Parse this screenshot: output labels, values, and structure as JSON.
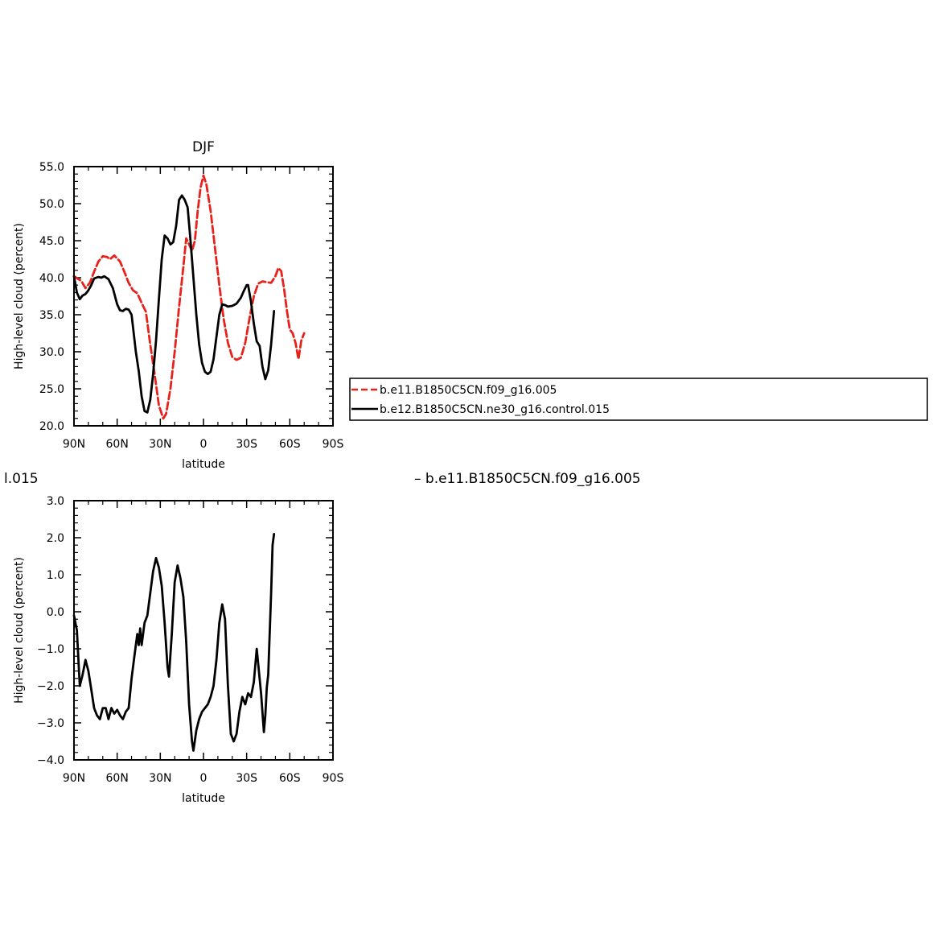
{
  "chart_data": [
    {
      "type": "line",
      "title": "DJF",
      "xlabel": "latitude",
      "ylabel": "High-level cloud (percent)",
      "xlim": [
        90,
        -90
      ],
      "ylim": [
        20,
        55
      ],
      "x_ticks": [
        {
          "value": 90,
          "label": "90N"
        },
        {
          "value": 60,
          "label": "60N"
        },
        {
          "value": 30,
          "label": "30N"
        },
        {
          "value": 0,
          "label": "0"
        },
        {
          "value": -30,
          "label": "30S"
        },
        {
          "value": -60,
          "label": "60S"
        },
        {
          "value": -90,
          "label": "90S"
        }
      ],
      "y_ticks": [
        {
          "value": 20,
          "label": "20.0"
        },
        {
          "value": 25,
          "label": "25.0"
        },
        {
          "value": 30,
          "label": "30.0"
        },
        {
          "value": 35,
          "label": "35.0"
        },
        {
          "value": 40,
          "label": "40.0"
        },
        {
          "value": 45,
          "label": "45.0"
        },
        {
          "value": 50,
          "label": "50.0"
        },
        {
          "value": 55,
          "label": "55.0"
        }
      ],
      "legend": "right",
      "series": [
        {
          "name": "b.e11.B1850C5CN.f09_g16.005",
          "color": "#e8211b",
          "dash": "dashed",
          "points": [
            [
              90,
              40.2
            ],
            [
              87,
              39.8
            ],
            [
              85,
              39.6
            ],
            [
              82,
              38.6
            ],
            [
              79,
              39.3
            ],
            [
              76,
              40.8
            ],
            [
              73,
              42.2
            ],
            [
              70,
              42.9
            ],
            [
              67,
              42.8
            ],
            [
              65,
              42.5
            ],
            [
              62,
              43.0
            ],
            [
              58,
              42.2
            ],
            [
              55,
              40.8
            ],
            [
              52,
              39.3
            ],
            [
              49,
              38.3
            ],
            [
              46,
              37.9
            ],
            [
              43,
              36.6
            ],
            [
              40,
              35.4
            ],
            [
              37,
              31.0
            ],
            [
              34,
              27.0
            ],
            [
              31,
              22.8
            ],
            [
              28,
              21.0
            ],
            [
              26,
              21.6
            ],
            [
              23,
              25.0
            ],
            [
              20,
              30.0
            ],
            [
              17,
              36.0
            ],
            [
              14,
              41.5
            ],
            [
              12,
              45.3
            ],
            [
              10,
              44.5
            ],
            [
              8,
              43.6
            ],
            [
              6,
              45.0
            ],
            [
              4,
              49.0
            ],
            [
              2,
              52.2
            ],
            [
              0,
              53.8
            ],
            [
              -2,
              52.6
            ],
            [
              -5,
              49.0
            ],
            [
              -8,
              44.0
            ],
            [
              -11,
              39.0
            ],
            [
              -14,
              34.5
            ],
            [
              -17,
              31.2
            ],
            [
              -20,
              29.3
            ],
            [
              -23,
              28.9
            ],
            [
              -26,
              29.2
            ],
            [
              -29,
              31.2
            ],
            [
              -32,
              34.5
            ],
            [
              -35,
              37.5
            ],
            [
              -38,
              39.2
            ],
            [
              -41,
              39.5
            ],
            [
              -44,
              39.4
            ],
            [
              -47,
              39.3
            ],
            [
              -50,
              40.2
            ],
            [
              -52,
              41.3
            ],
            [
              -54,
              40.9
            ],
            [
              -56,
              38.5
            ],
            [
              -58,
              35.5
            ],
            [
              -60,
              33.0
            ],
            [
              -62,
              32.5
            ],
            [
              -64,
              31.2
            ],
            [
              -66,
              29.0
            ],
            [
              -68,
              31.5
            ],
            [
              -70,
              32.5
            ]
          ]
        },
        {
          "name": "b.e12.B1850C5CN.ne30_g16.control.015",
          "color": "#000000",
          "dash": "solid",
          "points": [
            [
              90,
              40.2
            ],
            [
              88,
              38.0
            ],
            [
              86,
              37.1
            ],
            [
              84,
              37.6
            ],
            [
              82,
              37.8
            ],
            [
              80,
              38.3
            ],
            [
              78,
              39.0
            ],
            [
              76,
              39.9
            ],
            [
              73,
              40.1
            ],
            [
              71,
              40.0
            ],
            [
              69,
              40.2
            ],
            [
              66,
              39.8
            ],
            [
              63,
              38.6
            ],
            [
              60,
              36.4
            ],
            [
              58,
              35.6
            ],
            [
              56,
              35.5
            ],
            [
              54,
              35.8
            ],
            [
              52,
              35.7
            ],
            [
              50,
              35.0
            ],
            [
              47,
              30.0
            ],
            [
              45,
              27.4
            ],
            [
              43,
              24.0
            ],
            [
              41,
              22.0
            ],
            [
              39,
              21.8
            ],
            [
              37,
              23.5
            ],
            [
              35,
              27.0
            ],
            [
              33,
              31.5
            ],
            [
              31,
              37.0
            ],
            [
              29,
              42.5
            ],
            [
              27,
              45.7
            ],
            [
              25,
              45.3
            ],
            [
              23,
              44.5
            ],
            [
              21,
              44.8
            ],
            [
              19,
              47.0
            ],
            [
              17,
              50.5
            ],
            [
              15,
              51.1
            ],
            [
              13,
              50.5
            ],
            [
              11,
              49.5
            ],
            [
              9,
              45.0
            ],
            [
              7,
              40.0
            ],
            [
              5,
              35.0
            ],
            [
              3,
              31.0
            ],
            [
              1,
              28.5
            ],
            [
              -1,
              27.3
            ],
            [
              -3,
              27.0
            ],
            [
              -5,
              27.3
            ],
            [
              -7,
              29.0
            ],
            [
              -9,
              32.0
            ],
            [
              -11,
              35.0
            ],
            [
              -13,
              36.4
            ],
            [
              -15,
              36.3
            ],
            [
              -17,
              36.1
            ],
            [
              -20,
              36.2
            ],
            [
              -23,
              36.5
            ],
            [
              -26,
              37.3
            ],
            [
              -28,
              38.2
            ],
            [
              -30,
              39.0
            ],
            [
              -31,
              39.0
            ],
            [
              -33,
              36.8
            ],
            [
              -35,
              33.8
            ],
            [
              -37,
              31.4
            ],
            [
              -39,
              30.8
            ],
            [
              -41,
              28.0
            ],
            [
              -43,
              26.3
            ],
            [
              -45,
              27.5
            ],
            [
              -47,
              31.0
            ],
            [
              -49,
              35.5
            ]
          ]
        }
      ]
    },
    {
      "type": "line",
      "title": "",
      "xlabel": "latitude",
      "ylabel": "High-level cloud (percent)",
      "xlim": [
        90,
        -90
      ],
      "ylim": [
        -4,
        3
      ],
      "x_ticks": [
        {
          "value": 90,
          "label": "90N"
        },
        {
          "value": 60,
          "label": "60N"
        },
        {
          "value": 30,
          "label": "30N"
        },
        {
          "value": 0,
          "label": "0"
        },
        {
          "value": -30,
          "label": "30S"
        },
        {
          "value": -60,
          "label": "60S"
        },
        {
          "value": -90,
          "label": "90S"
        }
      ],
      "y_ticks": [
        {
          "value": -4,
          "label": "−4.0"
        },
        {
          "value": -3,
          "label": "−3.0"
        },
        {
          "value": -2,
          "label": "−2.0"
        },
        {
          "value": -1,
          "label": "−1.0"
        },
        {
          "value": 0,
          "label": "0.0"
        },
        {
          "value": 1,
          "label": "1.0"
        },
        {
          "value": 2,
          "label": "2.0"
        },
        {
          "value": 3,
          "label": "3.0"
        }
      ],
      "series": [
        {
          "name": "",
          "color": "#000000",
          "dash": "solid",
          "points": [
            [
              90,
              -0.1
            ],
            [
              88,
              -0.5
            ],
            [
              86,
              -2.0
            ],
            [
              84,
              -1.7
            ],
            [
              82,
              -1.3
            ],
            [
              80,
              -1.6
            ],
            [
              78,
              -2.1
            ],
            [
              76,
              -2.6
            ],
            [
              74,
              -2.8
            ],
            [
              72,
              -2.9
            ],
            [
              70,
              -2.6
            ],
            [
              68,
              -2.6
            ],
            [
              66,
              -2.9
            ],
            [
              64,
              -2.6
            ],
            [
              62,
              -2.75
            ],
            [
              60,
              -2.65
            ],
            [
              58,
              -2.8
            ],
            [
              56,
              -2.9
            ],
            [
              54,
              -2.7
            ],
            [
              52,
              -2.6
            ],
            [
              50,
              -1.8
            ],
            [
              48,
              -1.2
            ],
            [
              46,
              -0.6
            ],
            [
              45,
              -0.9
            ],
            [
              44,
              -0.45
            ],
            [
              43,
              -0.9
            ],
            [
              41,
              -0.3
            ],
            [
              39,
              -0.1
            ],
            [
              37,
              0.5
            ],
            [
              35,
              1.1
            ],
            [
              33,
              1.45
            ],
            [
              31,
              1.2
            ],
            [
              29,
              0.7
            ],
            [
              27,
              -0.3
            ],
            [
              25,
              -1.5
            ],
            [
              24,
              -1.75
            ],
            [
              22,
              -0.6
            ],
            [
              20,
              0.8
            ],
            [
              18,
              1.25
            ],
            [
              16,
              0.9
            ],
            [
              14,
              0.4
            ],
            [
              12,
              -0.8
            ],
            [
              10,
              -2.5
            ],
            [
              8,
              -3.5
            ],
            [
              7,
              -3.75
            ],
            [
              5,
              -3.2
            ],
            [
              3,
              -2.9
            ],
            [
              1,
              -2.7
            ],
            [
              -1,
              -2.6
            ],
            [
              -3,
              -2.5
            ],
            [
              -5,
              -2.3
            ],
            [
              -7,
              -2.0
            ],
            [
              -9,
              -1.3
            ],
            [
              -11,
              -0.3
            ],
            [
              -13,
              0.2
            ],
            [
              -15,
              -0.2
            ],
            [
              -17,
              -2.0
            ],
            [
              -19,
              -3.3
            ],
            [
              -21,
              -3.5
            ],
            [
              -23,
              -3.3
            ],
            [
              -25,
              -2.7
            ],
            [
              -27,
              -2.3
            ],
            [
              -29,
              -2.5
            ],
            [
              -31,
              -2.2
            ],
            [
              -33,
              -2.3
            ],
            [
              -35,
              -1.9
            ],
            [
              -37,
              -1.0
            ],
            [
              -38,
              -1.4
            ],
            [
              -40,
              -2.2
            ],
            [
              -42,
              -3.25
            ],
            [
              -43,
              -2.8
            ],
            [
              -44,
              -2.05
            ],
            [
              -45,
              -1.7
            ],
            [
              -46,
              -0.6
            ],
            [
              -47,
              0.5
            ],
            [
              -48,
              1.8
            ],
            [
              -49,
              2.1
            ]
          ]
        }
      ]
    }
  ],
  "legend_labels": {
    "series_1": "b.e11.B1850C5CN.f09_g16.005",
    "series_2": "b.e12.B1850C5CN.ne30_g16.control.015"
  },
  "diff_title": {
    "left": "l.015",
    "right": "–  b.e11.B1850C5CN.f09_g16.005"
  },
  "colors": {
    "series_1": "#e8211b",
    "series_2": "#000000",
    "axis": "#000000",
    "background": "#ffffff"
  }
}
